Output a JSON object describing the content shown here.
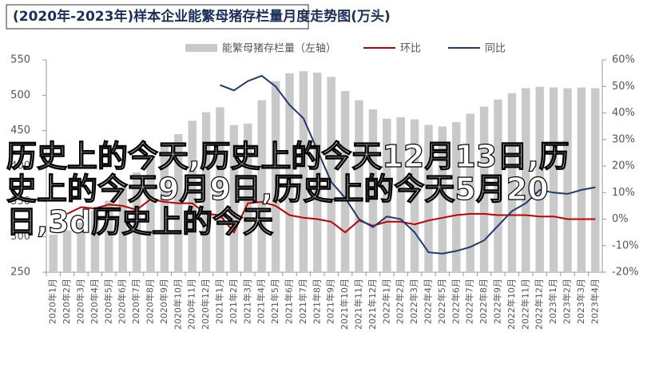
{
  "chart_data": {
    "type": "bar",
    "title": "(2020年-2023年)样本企业能繁母猪存栏量月度走势图(万头)",
    "categories": [
      "2020年1月",
      "2020年2月",
      "2020年3月",
      "2020年4月",
      "2020年5月",
      "2020年6月",
      "2020年7月",
      "2020年8月",
      "2020年9月",
      "2020年10月",
      "2020年11月",
      "2020年12月",
      "2021年1月",
      "2021年2月",
      "2021年3月",
      "2021年4月",
      "2021年5月",
      "2021年6月",
      "2021年7月",
      "2021年8月",
      "2021年9月",
      "2021年10月",
      "2021年11月",
      "2021年12月",
      "2022年1月",
      "2022年2月",
      "2022年3月",
      "2022年4月",
      "2022年5月",
      "2022年6月",
      "2022年7月",
      "2022年8月",
      "2022年9月",
      "2022年10月",
      "2022年11月",
      "2022年12月",
      "2023年1月",
      "2023年2月",
      "2023年3月",
      "2023年4月"
    ],
    "series": [
      {
        "name": "能繁母猪存栏量（左轴）",
        "type": "bar",
        "color": "#c9c9c9",
        "values": [
          303,
          309,
          320,
          337,
          351,
          370,
          391,
          410,
          428,
          445,
          464,
          476,
          483,
          458,
          460,
          493,
          520,
          531,
          534,
          532,
          526,
          506,
          493,
          480,
          467,
          469,
          466,
          458,
          456,
          462,
          474,
          484,
          494,
          503,
          510,
          512,
          511,
          510,
          511,
          510
        ]
      },
      {
        "name": "环比",
        "type": "line",
        "axis": "y2",
        "color": "#c00000",
        "values": [
          null,
          2,
          4.5,
          4,
          5.5,
          5,
          3.5,
          7.5,
          6.5,
          6,
          6,
          2,
          1.5,
          -5,
          6,
          6.5,
          5,
          1.5,
          0.5,
          0,
          -1,
          -5,
          -0.5,
          -2.5,
          -1,
          -1,
          -2,
          -0.5,
          0.5,
          1.5,
          2,
          2,
          1.5,
          1.5,
          1.5,
          1,
          1,
          0,
          0,
          0
        ]
      },
      {
        "name": "同比",
        "type": "line",
        "axis": "y2",
        "color": "#1f3a6e",
        "values": [
          null,
          null,
          null,
          null,
          null,
          null,
          null,
          null,
          null,
          null,
          null,
          null,
          50.5,
          48.5,
          52,
          54,
          50,
          43,
          38,
          26,
          14,
          8,
          0,
          -3,
          1,
          0,
          -5,
          -12.5,
          -13,
          -12,
          -10.5,
          -8,
          -2.5,
          3,
          6,
          11,
          10,
          9.5,
          11,
          12
        ]
      }
    ],
    "ylim": [
      250,
      550
    ],
    "yticks": [
      250,
      300,
      350,
      400,
      450,
      500,
      550
    ],
    "y2lim": [
      -20,
      60
    ],
    "y2ticks": [
      {
        "value": -20,
        "label": "-20%"
      },
      {
        "value": -10,
        "label": "-10%"
      },
      {
        "value": 0,
        "label": "0%"
      },
      {
        "value": 10,
        "label": "10%"
      },
      {
        "value": 20,
        "label": "20%"
      },
      {
        "value": 30,
        "label": "30%"
      },
      {
        "value": 40,
        "label": "40%"
      },
      {
        "value": 50,
        "label": "50%"
      },
      {
        "value": 60,
        "label": "60%"
      }
    ],
    "legend": "top",
    "annotation": "历史上的今天,历史上的今天12月13日,历史上的今天9月9日,历史上的今天5月20日,3d历史上的今天"
  }
}
